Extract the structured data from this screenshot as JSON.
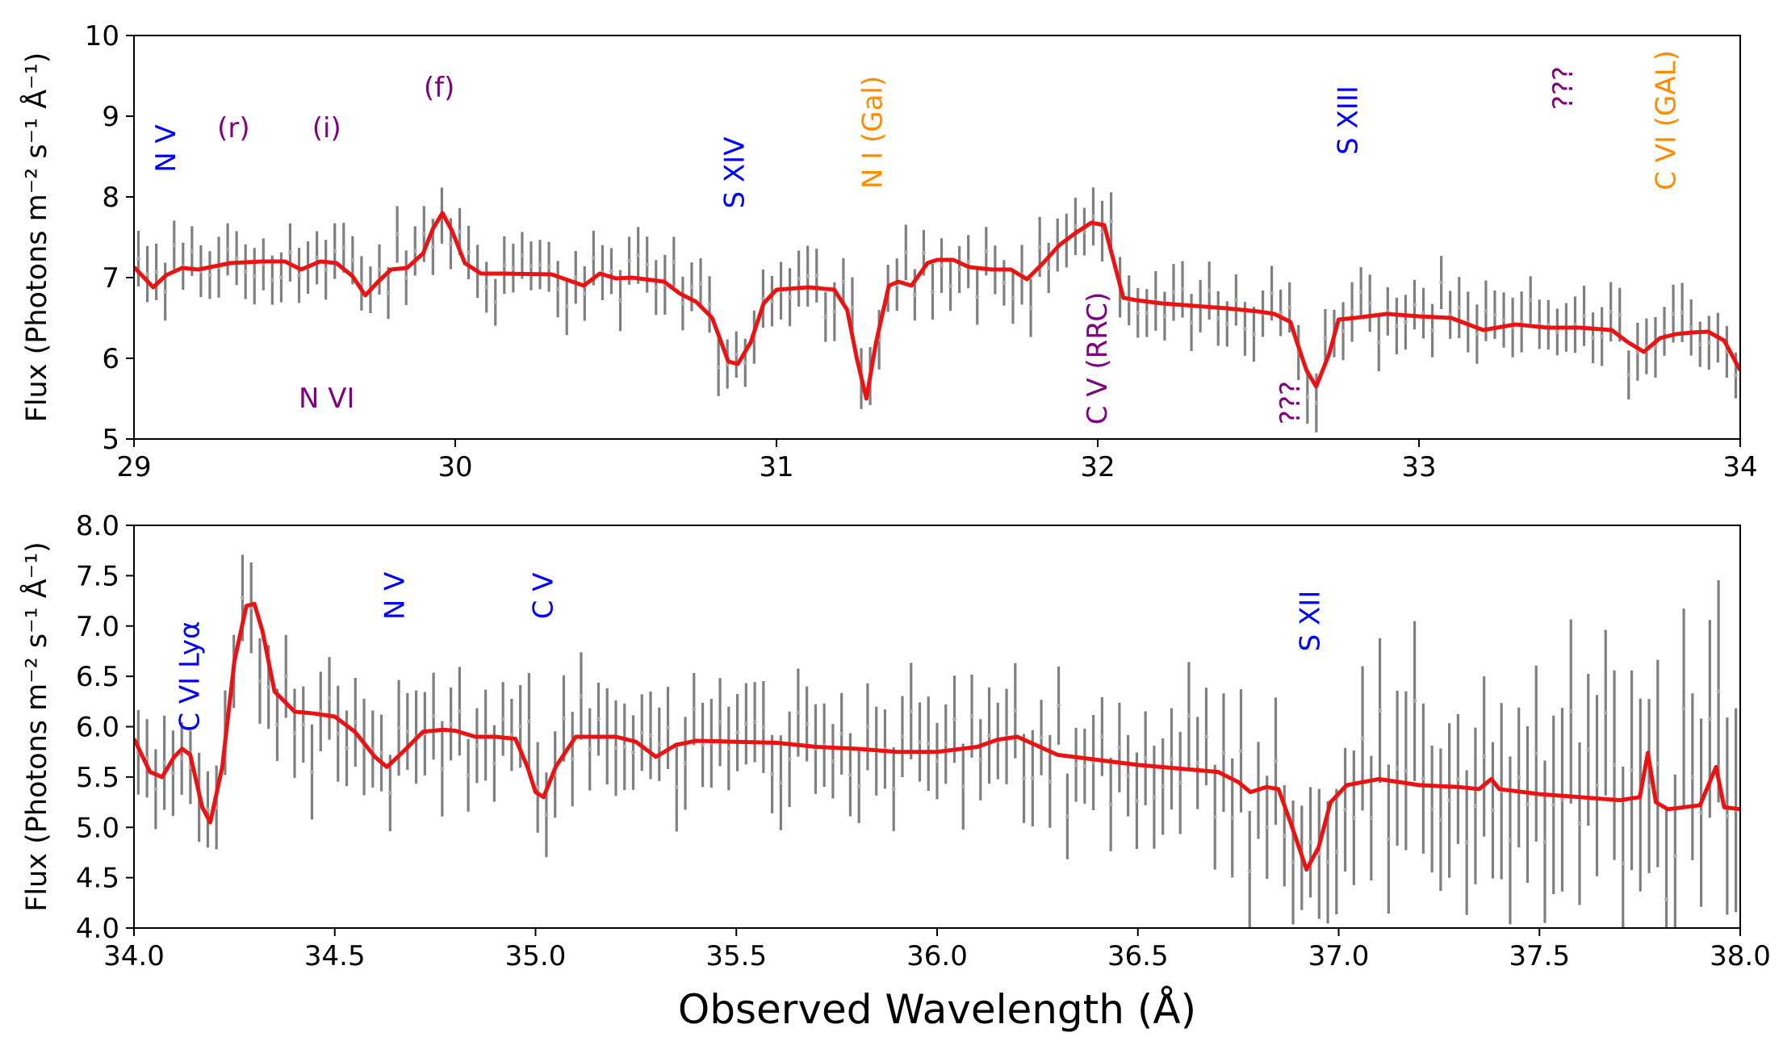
{
  "colors": {
    "model": "#ee1111",
    "data": "#7f7f7f",
    "blue": "#0000ff",
    "purple": "#800080",
    "orange": "#ff8c00"
  },
  "chart_data": [
    {
      "type": "line",
      "panel": "top",
      "xlabel": "",
      "ylabel": "Flux (Photons m⁻² s⁻¹ Å⁻¹)",
      "xlim": [
        29,
        34
      ],
      "ylim": [
        5,
        10
      ],
      "xticks": [
        "29",
        "30",
        "31",
        "32",
        "33",
        "34"
      ],
      "yticks": [
        "5",
        "6",
        "7",
        "8",
        "9",
        "10"
      ],
      "model": {
        "name": "model",
        "x": [
          29.0,
          29.06,
          29.1,
          29.15,
          29.2,
          29.3,
          29.4,
          29.47,
          29.52,
          29.58,
          29.63,
          29.68,
          29.72,
          29.76,
          29.8,
          29.85,
          29.9,
          29.93,
          29.96,
          29.99,
          30.03,
          30.08,
          30.15,
          30.3,
          30.4,
          30.45,
          30.5,
          30.55,
          30.65,
          30.7,
          30.75,
          30.8,
          30.85,
          30.88,
          30.92,
          30.96,
          31.0,
          31.1,
          31.18,
          31.22,
          31.25,
          31.28,
          31.31,
          31.35,
          31.38,
          31.42,
          31.47,
          31.5,
          31.55,
          31.6,
          31.67,
          31.73,
          31.78,
          31.83,
          31.88,
          31.93,
          31.98,
          32.02,
          32.05,
          32.08,
          32.12,
          32.2,
          32.4,
          32.5,
          32.55,
          32.6,
          32.62,
          32.65,
          32.68,
          32.72,
          32.75,
          32.8,
          32.9,
          33.0,
          33.1,
          33.2,
          33.3,
          33.4,
          33.5,
          33.6,
          33.65,
          33.7,
          33.75,
          33.8,
          33.85,
          33.9,
          33.95,
          34.0
        ],
        "y": [
          7.13,
          6.88,
          7.03,
          7.12,
          7.1,
          7.18,
          7.2,
          7.2,
          7.1,
          7.2,
          7.18,
          7.02,
          6.78,
          6.95,
          7.1,
          7.12,
          7.3,
          7.6,
          7.8,
          7.58,
          7.18,
          7.05,
          7.05,
          7.04,
          6.9,
          7.05,
          6.99,
          7.0,
          6.95,
          6.8,
          6.7,
          6.5,
          5.96,
          5.93,
          6.2,
          6.68,
          6.85,
          6.88,
          6.85,
          6.6,
          6.0,
          5.5,
          6.2,
          6.9,
          6.95,
          6.9,
          7.18,
          7.22,
          7.22,
          7.13,
          7.1,
          7.1,
          6.98,
          7.18,
          7.4,
          7.55,
          7.68,
          7.65,
          7.2,
          6.75,
          6.72,
          6.68,
          6.62,
          6.58,
          6.55,
          6.45,
          6.2,
          5.85,
          5.65,
          6.05,
          6.48,
          6.5,
          6.55,
          6.52,
          6.5,
          6.35,
          6.42,
          6.38,
          6.38,
          6.35,
          6.2,
          6.08,
          6.25,
          6.3,
          6.32,
          6.33,
          6.22,
          5.85
        ]
      },
      "annotations": [
        {
          "text": "N V",
          "x": 29.1,
          "y": 8.6,
          "rotation": -90,
          "color": "blue"
        },
        {
          "text": "(r)",
          "x": 29.31,
          "y": 8.85,
          "rotation": 0,
          "color": "purple"
        },
        {
          "text": "(i)",
          "x": 29.6,
          "y": 8.85,
          "rotation": 0,
          "color": "purple"
        },
        {
          "text": "(f)",
          "x": 29.95,
          "y": 9.35,
          "rotation": 0,
          "color": "purple"
        },
        {
          "text": "N VI",
          "x": 29.6,
          "y": 5.5,
          "rotation": 0,
          "color": "purple"
        },
        {
          "text": "S XIV",
          "x": 30.87,
          "y": 8.3,
          "rotation": -90,
          "color": "blue"
        },
        {
          "text": "N I (Gal)",
          "x": 31.3,
          "y": 8.8,
          "rotation": -90,
          "color": "orange"
        },
        {
          "text": "C V (RRC)",
          "x": 32.0,
          "y": 6.0,
          "rotation": -90,
          "color": "purple"
        },
        {
          "text": "???",
          "x": 32.6,
          "y": 5.45,
          "rotation": -90,
          "color": "purple"
        },
        {
          "text": "S XIII",
          "x": 32.78,
          "y": 8.95,
          "rotation": -90,
          "color": "blue"
        },
        {
          "text": "???",
          "x": 33.45,
          "y": 9.35,
          "rotation": -90,
          "color": "purple"
        },
        {
          "text": "C VI (GAL)",
          "x": 33.77,
          "y": 8.95,
          "rotation": -90,
          "color": "orange"
        }
      ]
    },
    {
      "type": "line",
      "panel": "bottom",
      "xlabel": "Observed Wavelength (Å)",
      "ylabel": "Flux (Photons m⁻² s⁻¹ Å⁻¹)",
      "xlim": [
        34,
        38
      ],
      "ylim": [
        4,
        8
      ],
      "xticks": [
        "34.0",
        "34.5",
        "35.0",
        "35.5",
        "36.0",
        "36.5",
        "37.0",
        "37.5",
        "38.0"
      ],
      "yticks": [
        "4.0",
        "4.5",
        "5.0",
        "5.5",
        "6.0",
        "6.5",
        "7.0",
        "7.5",
        "8.0"
      ],
      "model": {
        "name": "model",
        "x": [
          34.0,
          34.04,
          34.07,
          34.1,
          34.12,
          34.14,
          34.17,
          34.19,
          34.22,
          34.25,
          34.28,
          34.3,
          34.32,
          34.35,
          34.4,
          34.45,
          34.5,
          34.55,
          34.6,
          34.63,
          34.67,
          34.72,
          34.77,
          34.8,
          34.85,
          34.9,
          34.95,
          34.98,
          35.0,
          35.02,
          35.05,
          35.1,
          35.2,
          35.25,
          35.3,
          35.35,
          35.4,
          35.5,
          35.6,
          35.7,
          35.8,
          35.9,
          36.0,
          36.1,
          36.15,
          36.2,
          36.3,
          36.5,
          36.7,
          36.75,
          36.78,
          36.82,
          36.85,
          36.88,
          36.92,
          36.95,
          36.98,
          37.02,
          37.1,
          37.2,
          37.3,
          37.35,
          37.38,
          37.4,
          37.5,
          37.6,
          37.7,
          37.75,
          37.77,
          37.79,
          37.82,
          37.9,
          37.94,
          37.96,
          38.0
        ],
        "y": [
          5.88,
          5.55,
          5.5,
          5.7,
          5.78,
          5.72,
          5.2,
          5.05,
          5.6,
          6.65,
          7.2,
          7.22,
          6.95,
          6.35,
          6.15,
          6.13,
          6.1,
          5.95,
          5.7,
          5.6,
          5.75,
          5.95,
          5.97,
          5.96,
          5.9,
          5.9,
          5.88,
          5.6,
          5.35,
          5.3,
          5.6,
          5.9,
          5.9,
          5.85,
          5.7,
          5.82,
          5.86,
          5.85,
          5.84,
          5.8,
          5.78,
          5.75,
          5.75,
          5.8,
          5.87,
          5.9,
          5.72,
          5.62,
          5.55,
          5.45,
          5.35,
          5.4,
          5.38,
          5.05,
          4.58,
          4.8,
          5.25,
          5.42,
          5.48,
          5.42,
          5.4,
          5.38,
          5.48,
          5.38,
          5.33,
          5.3,
          5.27,
          5.3,
          5.74,
          5.25,
          5.18,
          5.22,
          5.6,
          5.2,
          5.18
        ]
      },
      "annotations": [
        {
          "text": "C VI Lyα",
          "x": 34.14,
          "y": 6.5,
          "rotation": -90,
          "color": "blue"
        },
        {
          "text": "N V",
          "x": 34.65,
          "y": 7.3,
          "rotation": -90,
          "color": "blue"
        },
        {
          "text": "C V",
          "x": 35.02,
          "y": 7.3,
          "rotation": -90,
          "color": "blue"
        },
        {
          "text": "S XII",
          "x": 36.93,
          "y": 7.05,
          "rotation": -90,
          "color": "blue"
        }
      ]
    }
  ]
}
